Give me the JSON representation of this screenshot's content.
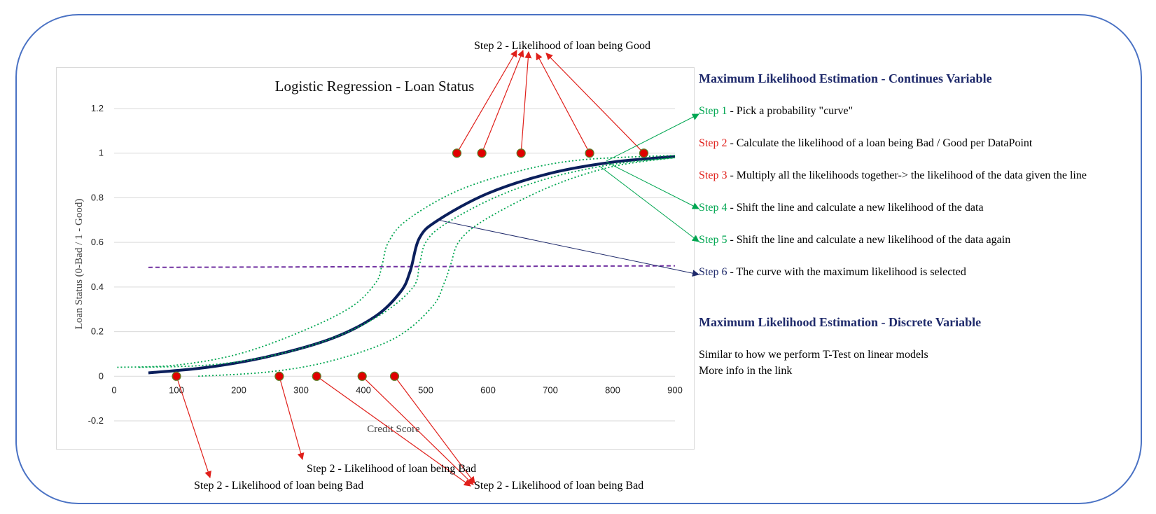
{
  "chart_data": {
    "type": "line",
    "title": "Logistic Regression - Loan Status",
    "xlabel": "Credit Score",
    "ylabel": "Loan Status (0-Bad / 1 - Good)",
    "xlim": [
      0,
      900
    ],
    "ylim": [
      -0.2,
      1.2
    ],
    "x_ticks": [
      "0",
      "100",
      "200",
      "300",
      "400",
      "500",
      "600",
      "700",
      "800",
      "900"
    ],
    "y_ticks": [
      "-0.2",
      "0",
      "0.2",
      "0.4",
      "0.6",
      "0.8",
      "1",
      "1.2"
    ],
    "grid": true,
    "threshold": 0.5,
    "points_good": [
      [
        550,
        1
      ],
      [
        590,
        1
      ],
      [
        653,
        1
      ],
      [
        763,
        1
      ],
      [
        850,
        1
      ]
    ],
    "points_bad": [
      [
        100,
        0
      ],
      [
        265,
        0
      ],
      [
        325,
        0
      ],
      [
        398,
        0
      ],
      [
        450,
        0
      ]
    ],
    "series": [
      {
        "style": "solid",
        "color": "#0b1f5c",
        "x": [
          55,
          150,
          250,
          350,
          420,
          460,
          475,
          490,
          520,
          600,
          700,
          800,
          900
        ],
        "y": [
          0.015,
          0.04,
          0.09,
          0.17,
          0.27,
          0.38,
          0.47,
          0.62,
          0.7,
          0.82,
          0.91,
          0.96,
          0.985
        ]
      },
      {
        "style": "dotted",
        "color": "#00a651",
        "x": [
          5,
          100,
          200,
          300,
          380,
          420,
          430,
          440,
          470,
          550,
          650,
          750,
          900
        ],
        "y": [
          0.04,
          0.05,
          0.1,
          0.2,
          0.31,
          0.42,
          0.5,
          0.6,
          0.7,
          0.83,
          0.92,
          0.97,
          0.99
        ]
      },
      {
        "style": "dotted",
        "color": "#00a651",
        "x": [
          40,
          150,
          250,
          350,
          430,
          480,
          490,
          500,
          530,
          610,
          700,
          800,
          900
        ],
        "y": [
          0.04,
          0.05,
          0.09,
          0.17,
          0.28,
          0.4,
          0.5,
          0.6,
          0.68,
          0.8,
          0.89,
          0.95,
          0.98
        ]
      },
      {
        "style": "dotted",
        "color": "#00a651",
        "x": [
          135,
          250,
          350,
          450,
          510,
          530,
          540,
          555,
          600,
          700,
          800,
          900
        ],
        "y": [
          0.0,
          0.02,
          0.07,
          0.17,
          0.31,
          0.42,
          0.5,
          0.61,
          0.71,
          0.85,
          0.94,
          0.98
        ]
      }
    ]
  },
  "callouts": {
    "top": "Step 2 - Likelihood of loan being Good",
    "bottom_1": "Step 2 - Likelihood of loan being Bad",
    "bottom_2": "Step 2 - Likelihood of loan being Bad",
    "bottom_3": "Step 2 - Likelihood of loan being Bad"
  },
  "panel": {
    "heading_continuous": "Maximum Likelihood Estimation - Continues Variable",
    "steps": [
      {
        "num": "Step 1",
        "text": " - Pick a probability \"curve\"",
        "color": "#00a651"
      },
      {
        "num": "Step 2",
        "text": " - Calculate the likelihood of a loan being Bad / Good per DataPoint",
        "color": "#e0201b"
      },
      {
        "num": "Step 3",
        "text": " - Multiply all the likelihoods together-> the likelihood of the data given the line",
        "color": "#e0201b"
      },
      {
        "num": "Step 4",
        "text": " - Shift the line and calculate a new likelihood of the data",
        "color": "#00a651"
      },
      {
        "num": "Step 5",
        "text": " - Shift the line and calculate a new likelihood of the data again",
        "color": "#00a651"
      },
      {
        "num": "Step 6",
        "text": " - The curve with the maximum likelihood is selected",
        "color": "#1f2a6b"
      }
    ],
    "heading_discrete": "Maximum Likelihood Estimation - Discrete Variable",
    "note_1": "Similar to how we perform T-Test on linear models",
    "note_2": "More info in the link"
  },
  "colors": {
    "curve": "#0b1f5c",
    "shifted_curves": "#00a651",
    "threshold": "#7030a0",
    "points": "#e00000",
    "arrows_red": "#e0201b",
    "arrow_blue": "#1f2a6b"
  }
}
